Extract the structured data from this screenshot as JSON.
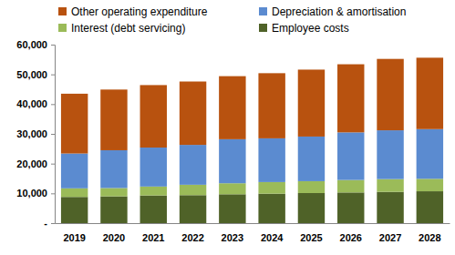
{
  "chart_data": {
    "type": "bar",
    "stacked": true,
    "grid": false,
    "legend": "top",
    "categories": [
      "2019",
      "2020",
      "2021",
      "2022",
      "2023",
      "2024",
      "2025",
      "2026",
      "2027",
      "2028"
    ],
    "series": [
      {
        "name": "Employee costs",
        "color": "#4f6228",
        "values": [
          8800,
          9000,
          9300,
          9400,
          9700,
          9900,
          10100,
          10300,
          10500,
          10700
        ]
      },
      {
        "name": "Interest (debt servicing)",
        "color": "#9bbb59",
        "values": [
          2900,
          2800,
          3000,
          3500,
          3700,
          3900,
          4000,
          4200,
          4300,
          4200
        ]
      },
      {
        "name": "Depreciation & amortisation",
        "color": "#5b8bd0",
        "values": [
          11700,
          12700,
          13100,
          13400,
          14800,
          14700,
          15000,
          16000,
          16400,
          16700
        ]
      },
      {
        "name": "Other operating expenditure",
        "color": "#b8520f",
        "values": [
          20100,
          20400,
          21000,
          21300,
          21200,
          21900,
          22500,
          22900,
          24000,
          24000
        ]
      }
    ],
    "ylim": [
      0,
      60000
    ],
    "yticks": [
      {
        "value": 0,
        "label": "-"
      },
      {
        "value": 10000,
        "label": "10,000"
      },
      {
        "value": 20000,
        "label": "20,000"
      },
      {
        "value": 30000,
        "label": "30,000"
      },
      {
        "value": 40000,
        "label": "40,000"
      },
      {
        "value": 50000,
        "label": "50,000"
      },
      {
        "value": 60000,
        "label": "60,000"
      }
    ]
  }
}
